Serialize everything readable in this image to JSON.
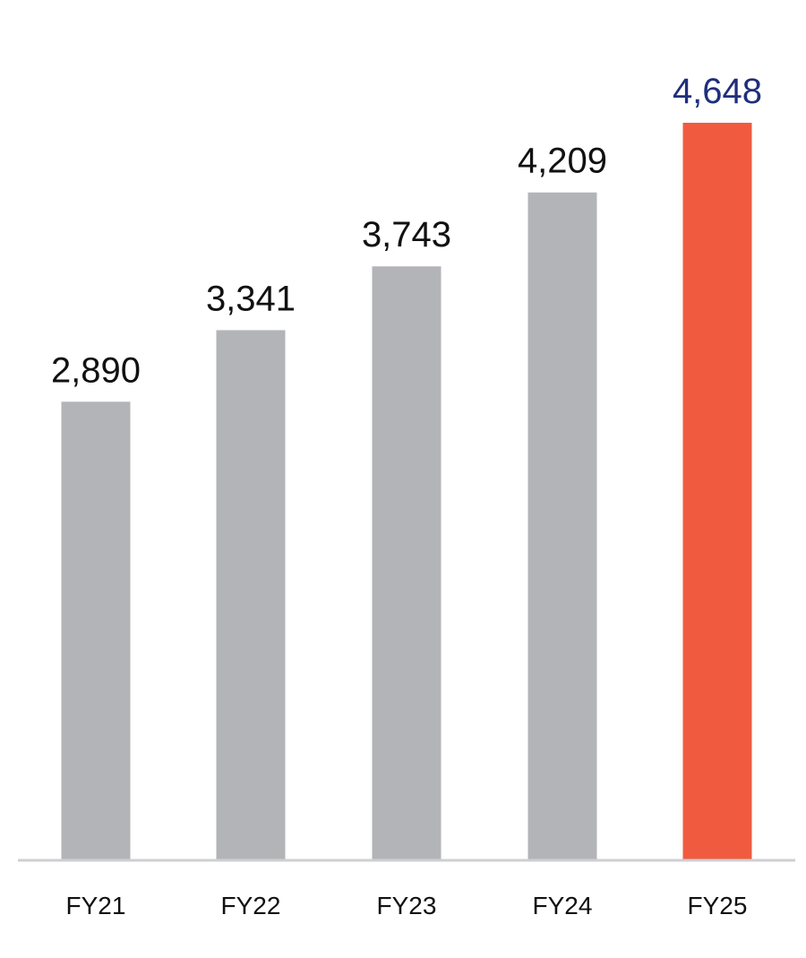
{
  "chart_data": {
    "type": "bar",
    "categories": [
      "FY21",
      "FY22",
      "FY23",
      "FY24",
      "FY25"
    ],
    "values": [
      2890,
      3341,
      3743,
      4209,
      4648
    ],
    "value_labels": [
      "2,890",
      "3,341",
      "3,743",
      "4,209",
      "4,648"
    ],
    "title": "",
    "xlabel": "",
    "ylabel": "",
    "ylim": [
      0,
      4648
    ],
    "grid": false,
    "legend": "none",
    "colors": {
      "bar": "#b3b4b7",
      "highlight_bar": "#f05b40",
      "label": "#111111",
      "highlight_label": "#1f2f7c",
      "axis": "#cfcfd3"
    },
    "highlight_index": 4
  }
}
